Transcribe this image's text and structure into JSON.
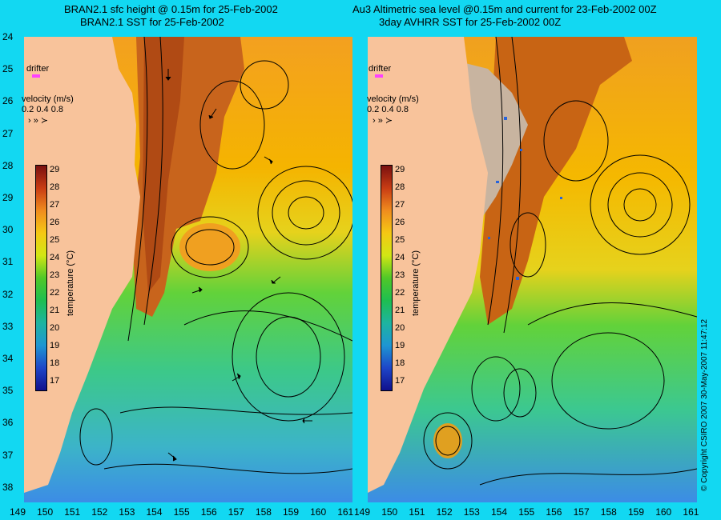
{
  "left_panel": {
    "title_line1": "BRAN2.1 sfc height @ 0.15m for 25-Feb-2002",
    "title_line2": "BRAN2.1 SST for 25-Feb-2002"
  },
  "right_panel": {
    "title_line1": "Au3 Altimetric sea level  @0.15m and current for 23-Feb-2002 00Z",
    "title_line2": "3day AVHRR SST for 25-Feb-2002 00Z"
  },
  "legend": {
    "drifter_label": "drifter",
    "velocity_label": "velocity (m/s)",
    "velocity_scale": "0.2 0.4 0.8",
    "temperature_title": "temperature (°C)",
    "temperature_ticks": [
      "29",
      "28",
      "27",
      "26",
      "25",
      "24",
      "23",
      "22",
      "21",
      "20",
      "19",
      "18",
      "17"
    ]
  },
  "axes": {
    "y_ticks": [
      "24",
      "25",
      "26",
      "27",
      "28",
      "29",
      "30",
      "31",
      "32",
      "33",
      "34",
      "35",
      "36",
      "37",
      "38"
    ],
    "x_ticks_left": [
      "149",
      "150",
      "151",
      "152",
      "153",
      "154",
      "155",
      "156",
      "157",
      "158",
      "159",
      "160",
      "161"
    ],
    "x_ticks_right": [
      "149",
      "150",
      "151",
      "152",
      "153",
      "154",
      "155",
      "156",
      "157",
      "158",
      "159",
      "160",
      "161"
    ]
  },
  "copyright": "© Copyright CSIRO 2007   30-May-2007 11:47:12",
  "colors": {
    "background": "#12d8f2",
    "land": "#f8c39b",
    "drifter": "#ff40ff",
    "warm": "#c85010",
    "mid": "#f5b800",
    "cool": "#3cc8a0"
  }
}
